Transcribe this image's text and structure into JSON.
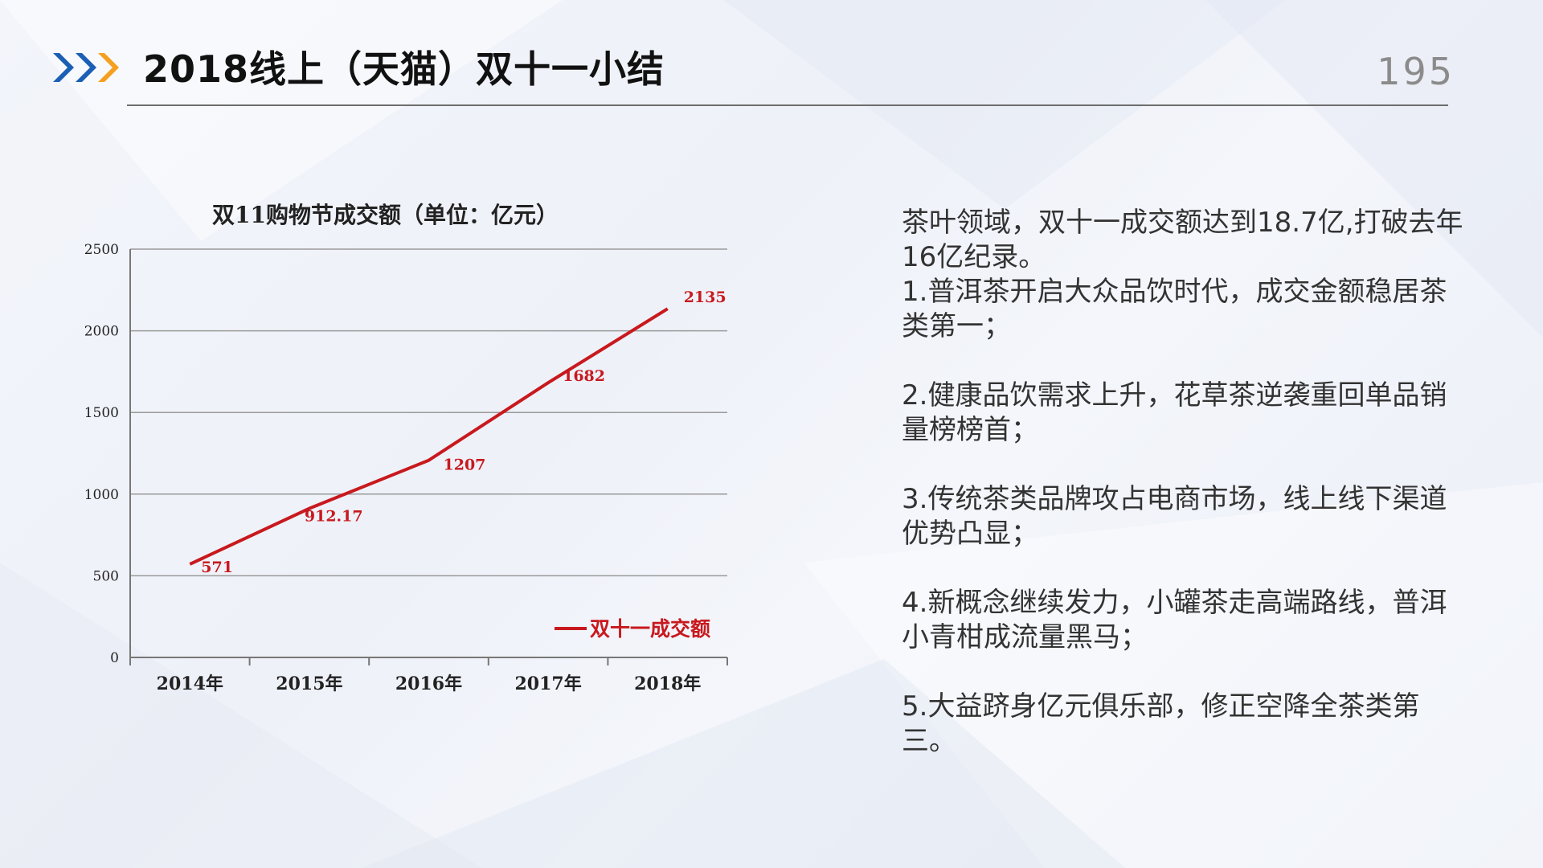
{
  "slide": {
    "title": "2018线上（天猫）双十一小结",
    "page_number": "195"
  },
  "chart_data": {
    "type": "line",
    "title": "双11购物节成交额（单位：亿元）",
    "categories": [
      "2014年",
      "2015年",
      "2016年",
      "2017年",
      "2018年"
    ],
    "series": [
      {
        "name": "双十一成交额",
        "values": [
          571,
          912.17,
          1207,
          1682,
          2135
        ],
        "labels": [
          "571",
          "912.17",
          "1207",
          "1682",
          "2135"
        ]
      }
    ],
    "yticks": [
      "0",
      "500",
      "1000",
      "1500",
      "2000",
      "2500"
    ],
    "ylim": [
      0,
      2500
    ],
    "grid": true,
    "legend": "bottom-right",
    "series_color": "#c8191e"
  },
  "notes": {
    "intro": "茶叶领域，双十一成交额达到18.7亿,打破去年16亿纪录。",
    "items": [
      "1.普洱茶开启大众品饮时代，成交金额稳居茶类第一；",
      "2.健康品饮需求上升，花草茶逆袭重回单品销量榜榜首；",
      "3.传统茶类品牌攻占电商市场，线上线下渠道优势凸显；",
      "4.新概念继续发力，小罐茶走高端路线，普洱小青柑成流量黑马；",
      "5.大益跻身亿元俱乐部，修正空降全茶类第三。"
    ]
  },
  "colors": {
    "arrow_blue": "#1a5fb4",
    "arrow_orange": "#f5a020"
  }
}
